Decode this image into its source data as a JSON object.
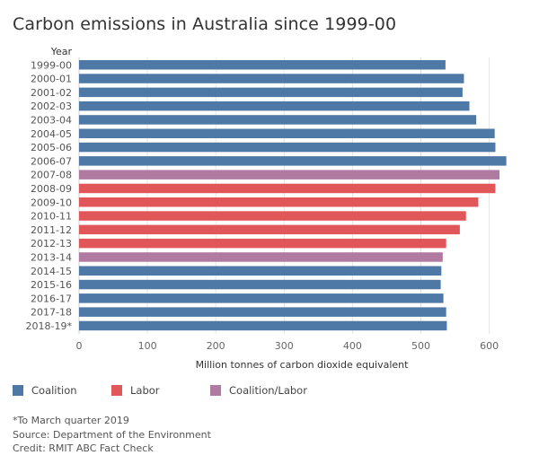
{
  "page": {
    "title": "Carbon emissions in Australia since 1999-00"
  },
  "chart_data": {
    "type": "bar",
    "orientation": "horizontal",
    "title": "Carbon emissions in Australia since 1999-00",
    "ylabel": "Year",
    "xlabel": "Million tonnes of carbon dioxide equivalent",
    "xlim": [
      0,
      650
    ],
    "xticks": [
      0,
      100,
      200,
      300,
      400,
      500,
      600
    ],
    "grid": true,
    "categories": [
      "1999-00",
      "2000-01",
      "2001-02",
      "2002-03",
      "2003-04",
      "2004-05",
      "2005-06",
      "2006-07",
      "2007-08",
      "2008-09",
      "2009-10",
      "2010-11",
      "2011-12",
      "2012-13",
      "2013-14",
      "2014-15",
      "2015-16",
      "2016-17",
      "2017-18",
      "2018-19*"
    ],
    "values": [
      536,
      563,
      561,
      571,
      581,
      608,
      609,
      625,
      615,
      609,
      584,
      566,
      557,
      537,
      532,
      530,
      529,
      533,
      537,
      538
    ],
    "government": [
      "Coalition",
      "Coalition",
      "Coalition",
      "Coalition",
      "Coalition",
      "Coalition",
      "Coalition",
      "Coalition",
      "Coalition/Labor",
      "Labor",
      "Labor",
      "Labor",
      "Labor",
      "Labor",
      "Coalition/Labor",
      "Coalition",
      "Coalition",
      "Coalition",
      "Coalition",
      "Coalition"
    ],
    "legend": [
      {
        "name": "Coalition",
        "color": "#4e79a7"
      },
      {
        "name": "Labor",
        "color": "#e15759"
      },
      {
        "name": "Coalition/Labor",
        "color": "#b07aa1"
      }
    ]
  },
  "footnotes": [
    "*To March quarter 2019",
    "Source: Department of the Environment",
    "Credit: RMIT ABC Fact Check"
  ]
}
